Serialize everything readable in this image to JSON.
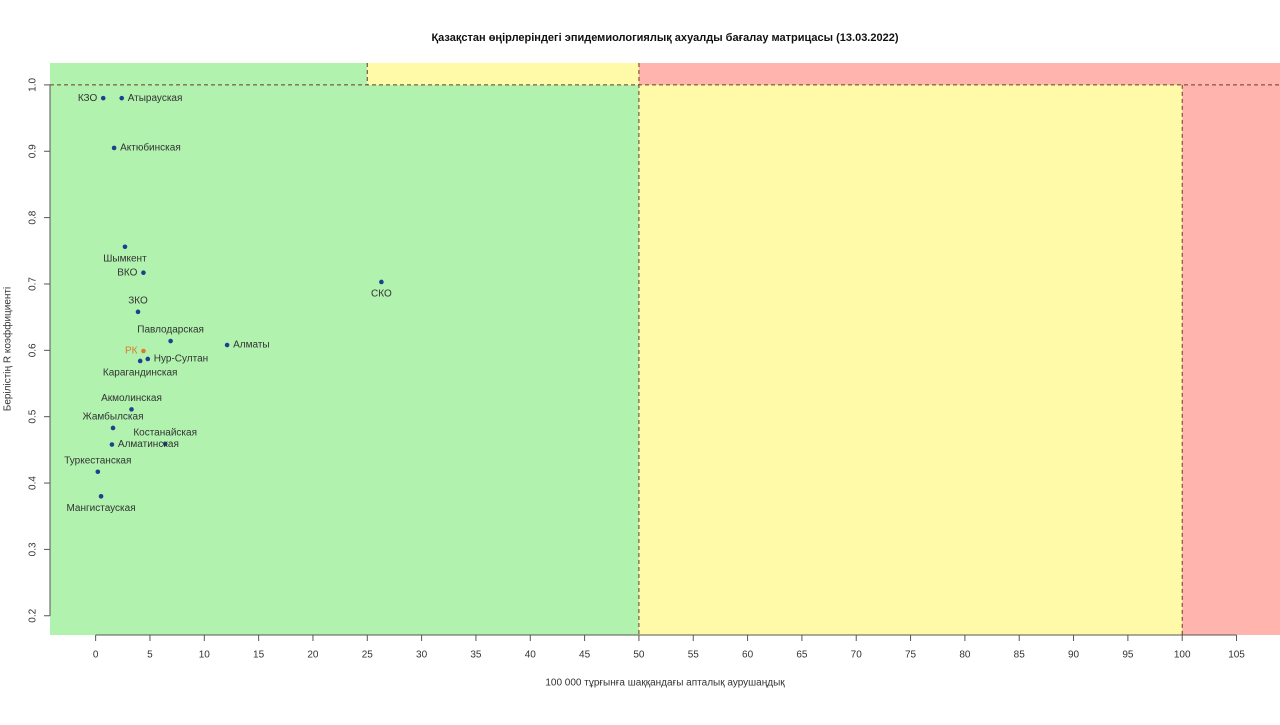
{
  "chart_data": {
    "type": "scatter",
    "title": "Қазақстан өңірлеріндегі эпидемиологиялық ахуалды бағалау матрицасы  (13.03.2022)",
    "x_label": "100 000 тұрғынға шаққандағы апталық аурушаңдық",
    "y_label": "Берілістің R коэффициенті",
    "labels": [
      "КЗО",
      "Атырауская",
      "Актюбинская",
      "Шымкент",
      "ВКО",
      "СКО",
      "ЗКО",
      "Павлодарская",
      "Алматы",
      "РК",
      "Нур-Султан",
      "Карагандинская",
      "Акмолинская",
      "Жамбылская",
      "Костанайская",
      "Алматинская",
      "Туркестанская",
      "Мангистауская"
    ],
    "x": [
      0.7,
      2.4,
      1.7,
      2.7,
      4.4,
      26.3,
      3.9,
      6.9,
      12.1,
      4.4,
      4.8,
      4.1,
      3.3,
      1.6,
      6.4,
      1.5,
      0.2,
      0.5
    ],
    "values": [
      0.98,
      0.98,
      0.905,
      0.756,
      0.717,
      0.703,
      0.658,
      0.614,
      0.608,
      0.599,
      0.587,
      0.584,
      0.511,
      0.483,
      0.459,
      0.458,
      0.417,
      0.38
    ],
    "point_colors": [
      "#1f3f8f",
      "#1f3f8f",
      "#1f3f8f",
      "#1f3f8f",
      "#1f3f8f",
      "#1f3f8f",
      "#1f3f8f",
      "#1f3f8f",
      "#1f3f8f",
      "#e07a2a",
      "#1f3f8f",
      "#1f3f8f",
      "#1f3f8f",
      "#1f3f8f",
      "#1f3f8f",
      "#1f3f8f",
      "#1f3f8f",
      "#1f3f8f"
    ],
    "xlim": [
      -4.2,
      109
    ],
    "ylim": [
      0.171,
      1.033
    ],
    "xticks": [
      0,
      5,
      10,
      15,
      20,
      25,
      30,
      35,
      40,
      45,
      50,
      55,
      60,
      65,
      70,
      75,
      80,
      85,
      90,
      95,
      100,
      105
    ],
    "yticks": [
      0.2,
      0.3,
      0.4,
      0.5,
      0.6,
      0.7,
      0.8,
      0.9,
      {
        "value": 1,
        "label": "1.0"
      }
    ],
    "x_thresholds": [
      25,
      50,
      100
    ],
    "y_threshold": 1,
    "zone_colors": {
      "green": "#b0f2ae",
      "yellow": "#fffaa8",
      "red": "#ffb4ae"
    }
  }
}
